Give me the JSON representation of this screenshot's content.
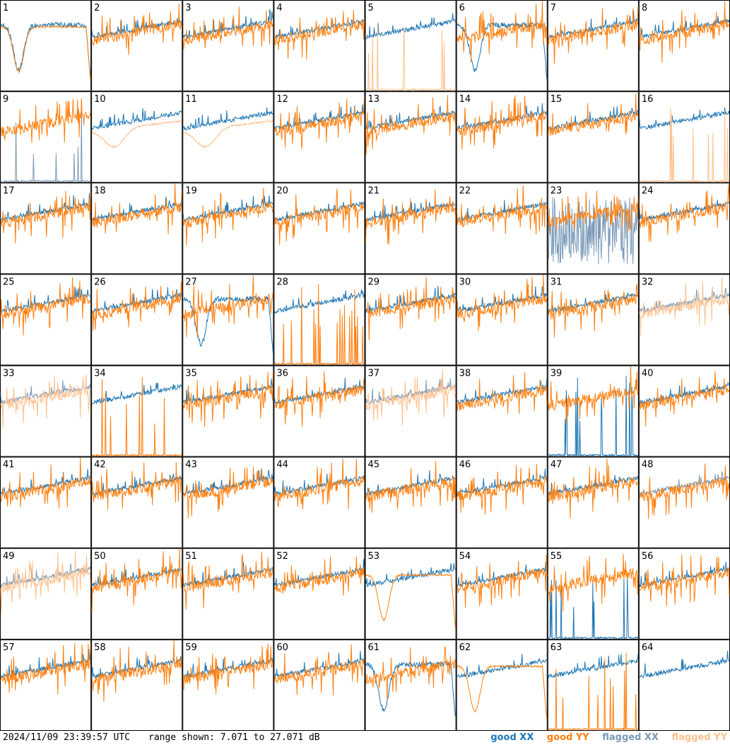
{
  "footer": {
    "timestamp": "2024/11/09 23:39:57 UTC",
    "range_text": "range shown: 7.071 to 27.071 dB"
  },
  "legend": [
    {
      "label": "good XX",
      "color": "#1f77b4"
    },
    {
      "label": "good YY",
      "color": "#ff7f0e"
    },
    {
      "label": "flagged XX",
      "color": "#7b9ab8"
    },
    {
      "label": "flagged YY",
      "color": "#ffc08c"
    }
  ],
  "chart_data": {
    "type": "line",
    "ylim": [
      7.071,
      27.071
    ],
    "grid": false,
    "legend_position": "bottom-right",
    "panels": [
      {
        "id": "1",
        "xx": "good",
        "yy": "good",
        "pattern": "dip"
      },
      {
        "id": "2",
        "xx": "good",
        "yy": "good",
        "pattern": "normal"
      },
      {
        "id": "3",
        "xx": "good",
        "yy": "good",
        "pattern": "normal"
      },
      {
        "id": "4",
        "xx": "good",
        "yy": "good",
        "pattern": "normal"
      },
      {
        "id": "5",
        "xx": "good",
        "yy": "flagged",
        "pattern": "yy-spikes"
      },
      {
        "id": "6",
        "xx": "good",
        "yy": "good",
        "pattern": "xx-dip"
      },
      {
        "id": "7",
        "xx": "good",
        "yy": "good",
        "pattern": "normal"
      },
      {
        "id": "8",
        "xx": "good",
        "yy": "good",
        "pattern": "normal"
      },
      {
        "id": "9",
        "xx": "flagged",
        "yy": "good",
        "pattern": "xx-spikes"
      },
      {
        "id": "10",
        "xx": "good",
        "yy": "flagged",
        "pattern": "smooth"
      },
      {
        "id": "11",
        "xx": "good",
        "yy": "flagged",
        "pattern": "smooth"
      },
      {
        "id": "12",
        "xx": "good",
        "yy": "good",
        "pattern": "normal"
      },
      {
        "id": "13",
        "xx": "good",
        "yy": "good",
        "pattern": "normal"
      },
      {
        "id": "14",
        "xx": "good",
        "yy": "good",
        "pattern": "normal"
      },
      {
        "id": "15",
        "xx": "good",
        "yy": "good",
        "pattern": "normal"
      },
      {
        "id": "16",
        "xx": "good",
        "yy": "flagged",
        "pattern": "yy-spikes"
      },
      {
        "id": "17",
        "xx": "good",
        "yy": "good",
        "pattern": "normal"
      },
      {
        "id": "18",
        "xx": "good",
        "yy": "good",
        "pattern": "normal"
      },
      {
        "id": "19",
        "xx": "good",
        "yy": "good",
        "pattern": "normal"
      },
      {
        "id": "20",
        "xx": "good",
        "yy": "good",
        "pattern": "normal"
      },
      {
        "id": "21",
        "xx": "good",
        "yy": "good",
        "pattern": "normal"
      },
      {
        "id": "22",
        "xx": "good",
        "yy": "good",
        "pattern": "normal"
      },
      {
        "id": "23",
        "xx": "flagged",
        "yy": "good",
        "pattern": "noisy-xx"
      },
      {
        "id": "24",
        "xx": "good",
        "yy": "good",
        "pattern": "normal"
      },
      {
        "id": "25",
        "xx": "good",
        "yy": "good",
        "pattern": "normal"
      },
      {
        "id": "26",
        "xx": "good",
        "yy": "good",
        "pattern": "normal"
      },
      {
        "id": "27",
        "xx": "good",
        "yy": "good",
        "pattern": "xx-dip"
      },
      {
        "id": "28",
        "xx": "good",
        "yy": "good",
        "pattern": "yy-spikes"
      },
      {
        "id": "29",
        "xx": "good",
        "yy": "good",
        "pattern": "normal"
      },
      {
        "id": "30",
        "xx": "good",
        "yy": "good",
        "pattern": "normal"
      },
      {
        "id": "31",
        "xx": "good",
        "yy": "good",
        "pattern": "normal"
      },
      {
        "id": "32",
        "xx": "flagged",
        "yy": "flagged",
        "pattern": "normal"
      },
      {
        "id": "33",
        "xx": "flagged",
        "yy": "flagged",
        "pattern": "normal"
      },
      {
        "id": "34",
        "xx": "good",
        "yy": "good",
        "pattern": "yy-spikes"
      },
      {
        "id": "35",
        "xx": "good",
        "yy": "good",
        "pattern": "normal"
      },
      {
        "id": "36",
        "xx": "good",
        "yy": "good",
        "pattern": "normal"
      },
      {
        "id": "37",
        "xx": "flagged",
        "yy": "flagged",
        "pattern": "normal"
      },
      {
        "id": "38",
        "xx": "good",
        "yy": "good",
        "pattern": "normal"
      },
      {
        "id": "39",
        "xx": "good",
        "yy": "good",
        "pattern": "xx-spikes"
      },
      {
        "id": "40",
        "xx": "good",
        "yy": "good",
        "pattern": "normal"
      },
      {
        "id": "41",
        "xx": "good",
        "yy": "good",
        "pattern": "normal"
      },
      {
        "id": "42",
        "xx": "good",
        "yy": "good",
        "pattern": "normal"
      },
      {
        "id": "43",
        "xx": "good",
        "yy": "good",
        "pattern": "normal"
      },
      {
        "id": "44",
        "xx": "good",
        "yy": "good",
        "pattern": "normal"
      },
      {
        "id": "45",
        "xx": "good",
        "yy": "good",
        "pattern": "normal"
      },
      {
        "id": "46",
        "xx": "good",
        "yy": "good",
        "pattern": "normal"
      },
      {
        "id": "47",
        "xx": "good",
        "yy": "good",
        "pattern": "normal"
      },
      {
        "id": "48",
        "xx": "flagged",
        "yy": "good",
        "pattern": "normal"
      },
      {
        "id": "49",
        "xx": "flagged",
        "yy": "flagged",
        "pattern": "normal"
      },
      {
        "id": "50",
        "xx": "good",
        "yy": "good",
        "pattern": "normal"
      },
      {
        "id": "51",
        "xx": "good",
        "yy": "good",
        "pattern": "normal"
      },
      {
        "id": "52",
        "xx": "good",
        "yy": "good",
        "pattern": "normal"
      },
      {
        "id": "53",
        "xx": "good",
        "yy": "good",
        "pattern": "yy-dip"
      },
      {
        "id": "54",
        "xx": "good",
        "yy": "good",
        "pattern": "normal"
      },
      {
        "id": "55",
        "xx": "good",
        "yy": "good",
        "pattern": "xx-spikes"
      },
      {
        "id": "56",
        "xx": "good",
        "yy": "good",
        "pattern": "normal"
      },
      {
        "id": "57",
        "xx": "good",
        "yy": "good",
        "pattern": "normal"
      },
      {
        "id": "58",
        "xx": "good",
        "yy": "good",
        "pattern": "normal"
      },
      {
        "id": "59",
        "xx": "good",
        "yy": "good",
        "pattern": "normal"
      },
      {
        "id": "60",
        "xx": "good",
        "yy": "good",
        "pattern": "normal"
      },
      {
        "id": "61",
        "xx": "good",
        "yy": "good",
        "pattern": "xx-dip"
      },
      {
        "id": "62",
        "xx": "good",
        "yy": "good",
        "pattern": "yy-dip"
      },
      {
        "id": "63",
        "xx": "good",
        "yy": "good",
        "pattern": "yy-spikes"
      },
      {
        "id": "64",
        "xx": "good",
        "yy": "good",
        "pattern": "xx-only"
      }
    ]
  }
}
